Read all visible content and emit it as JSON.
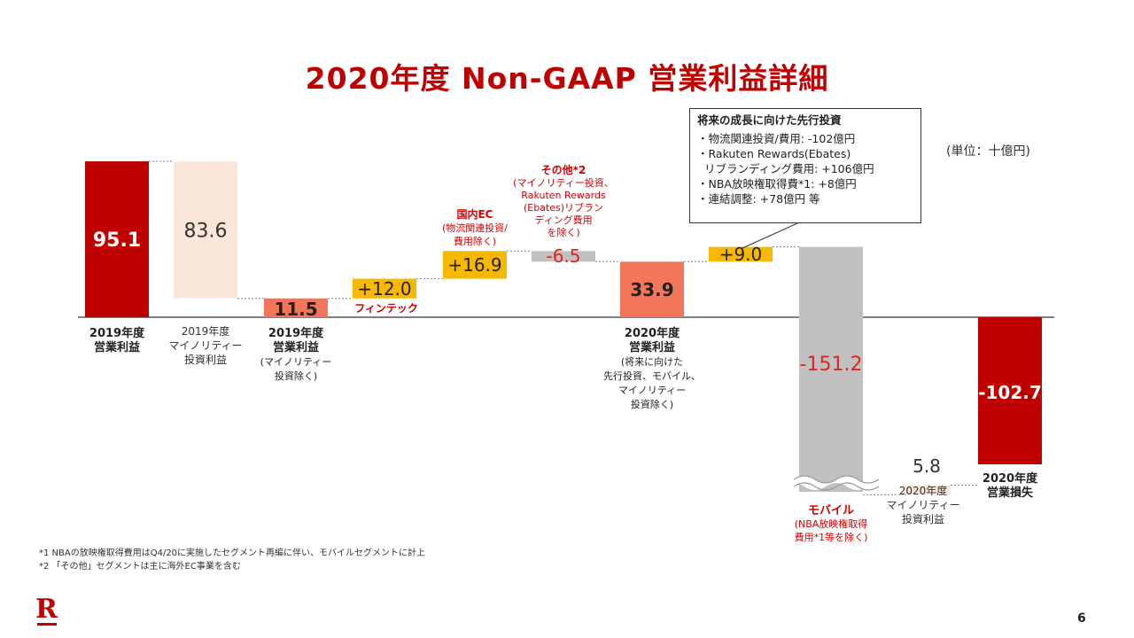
{
  "title": "2020年度 Non-GAAP 営業利益詳細",
  "unit": "(単位：十億円)",
  "callout": {
    "title": "将来の成長に向けた先行投資",
    "lines": [
      "・物流関連投資/費用: -102億円",
      "・Rakuten Rewards(Ebates)",
      "  リブランディング費用: +106億円",
      "・NBA放映権取得費*1: +8億円",
      "・連結調整: +78億円 等"
    ]
  },
  "chart_data": {
    "type": "bar",
    "subtype": "waterfall",
    "unit": "十億円",
    "bars": [
      {
        "kind": "total",
        "value": 95.1,
        "value_label": "95.1",
        "color": "#bf0000",
        "caption": [
          "2019年度",
          "営業利益"
        ]
      },
      {
        "kind": "delta",
        "value": -83.6,
        "value_label": "83.6",
        "color": "#fbe6da",
        "caption": [
          "2019年度",
          "マイノリティー",
          "投資利益"
        ]
      },
      {
        "kind": "total",
        "value": 11.5,
        "value_label": "11.5",
        "color": "#f4765a",
        "caption": [
          "2019年度",
          "営業利益",
          "(マイノリティー",
          "投資除く)"
        ]
      },
      {
        "kind": "delta",
        "value": 12.0,
        "value_label": "+12.0",
        "color": "#f7b900",
        "caption": [
          "フィンテック"
        ]
      },
      {
        "kind": "delta",
        "value": 16.9,
        "value_label": "+16.9",
        "color": "#f7b900",
        "caption": [
          "国内EC",
          "(物流関連投資/",
          "費用除く)"
        ]
      },
      {
        "kind": "delta",
        "value": -6.5,
        "value_label": "-6.5",
        "color": "#c0c0c0",
        "caption": [
          "その他*2",
          "(マイノリティー投資、",
          "Rakuten Rewards",
          "(Ebates)リブラン",
          "ディング費用",
          "を除く)"
        ]
      },
      {
        "kind": "total",
        "value": 33.9,
        "value_label": "33.9",
        "color": "#f4765a",
        "caption": [
          "2020年度",
          "営業利益",
          "(将来に向けた",
          "先行投資、モバイル、",
          "マイノリティー",
          "投資除く)"
        ]
      },
      {
        "kind": "delta",
        "value": 9.0,
        "value_label": "+9.0",
        "color": "#f7b900",
        "caption": []
      },
      {
        "kind": "delta",
        "value": -151.2,
        "value_label": "-151.2",
        "color": "#c0c0c0",
        "caption": [
          "モバイル",
          "(NBA放映権取得",
          "費用*1等を除く)"
        ]
      },
      {
        "kind": "delta",
        "value": 5.8,
        "value_label": "5.8",
        "color": "#fbe6da",
        "caption": [
          "2020年度",
          "マイノリティー",
          "投資利益"
        ]
      },
      {
        "kind": "total",
        "value": -102.7,
        "value_label": "-102.7",
        "color": "#bf0000",
        "caption": [
          "2020年度",
          "営業損失"
        ]
      }
    ],
    "axis_break": "モバイル bar (y-axis break shown near the bottom)",
    "grid": false,
    "legend": "none"
  },
  "footnotes": [
    "*1 NBAの放映権取得費用はQ4/20に実施したセグメント再編に伴い、モバイルセグメントに計上",
    "*2 「その他」セグメントは主に海外EC事業を含む"
  ],
  "logo": "R",
  "page_number": "6"
}
